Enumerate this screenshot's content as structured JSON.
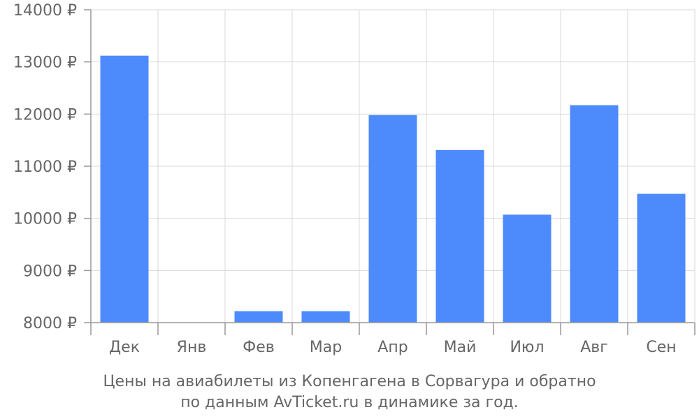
{
  "chart_data": {
    "type": "bar",
    "categories": [
      "Дек",
      "Янв",
      "Фев",
      "Мар",
      "Апр",
      "Май",
      "Июл",
      "Авг",
      "Сен"
    ],
    "values": [
      13120,
      null,
      8220,
      8220,
      11980,
      11310,
      10070,
      12170,
      10470
    ],
    "ylim": [
      8000,
      14000
    ],
    "yticks": [
      8000,
      9000,
      10000,
      11000,
      12000,
      13000,
      14000
    ],
    "ytick_labels": [
      "8000 ₽",
      "9000 ₽",
      "10000 ₽",
      "11000 ₽",
      "12000 ₽",
      "13000 ₽",
      "14000 ₽"
    ],
    "grid": true,
    "bar_color": "#4d8afc"
  },
  "caption": {
    "line1": "Цены на авиабилеты из Копенгагена в Сорвагура и обратно",
    "line2": "по данным AvTicket.ru в динамике за год."
  }
}
